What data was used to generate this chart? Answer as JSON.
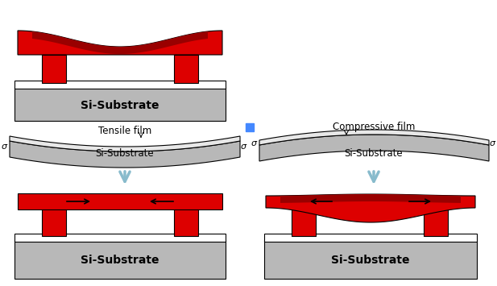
{
  "bg_color": "#ffffff",
  "red_color": "#dd0000",
  "red_dark": "#990000",
  "red_light": "#ff3333",
  "gray_light": "#b8b8b8",
  "gray_substrate": "#a0a0a0",
  "white_film": "#e8e8e8",
  "arrow_color": "#88bbcc",
  "substrate_text": "Si-Substrate",
  "tensile_label": "Tensile film",
  "compressive_label": "Compressive film",
  "blue_dot_color": "#4488ff",
  "fig_width": 6.17,
  "fig_height": 3.55,
  "dpi": 100
}
